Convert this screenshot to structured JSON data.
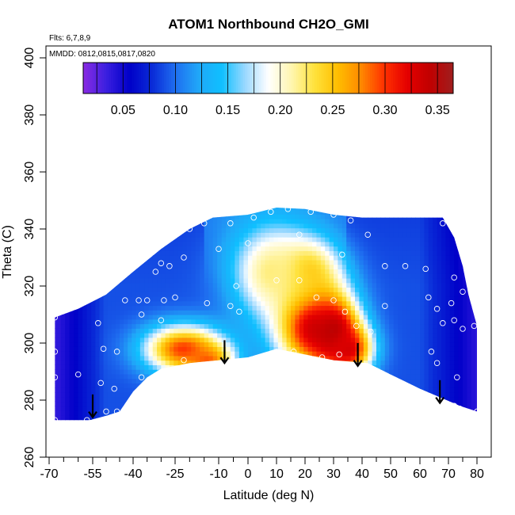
{
  "chart_data": {
    "type": "heatmap",
    "title": "ATOM1 Northbound CH2O_GMI",
    "subtitle_flights": "Flts: 6,7,8,9",
    "subtitle_dates": "MMDD: 0812,0815,0817,0820",
    "xlabel": "Latitude (deg N)",
    "ylabel": "Theta (C)",
    "xlim": [
      -72,
      85
    ],
    "ylim": [
      260,
      402
    ],
    "x_ticks": [
      -70,
      -55,
      -40,
      -25,
      -10,
      0,
      10,
      20,
      30,
      40,
      50,
      60,
      70,
      80
    ],
    "x_ticks_major_labels": [
      "-70",
      "-55",
      "-40",
      "-25",
      "-10",
      "0",
      "10",
      "20",
      "30",
      "40",
      "50",
      "60",
      "70",
      "80"
    ],
    "y_ticks": [
      260,
      280,
      300,
      320,
      340,
      360,
      380,
      400
    ],
    "y_tick_labels": [
      "260",
      "280",
      "300",
      "320",
      "340",
      "360",
      "380",
      "400"
    ],
    "colorbar": {
      "range": [
        0.012,
        0.365
      ],
      "tick_values": [
        0.05,
        0.1,
        0.15,
        0.2,
        0.25,
        0.3,
        0.35
      ],
      "tick_labels": [
        "0.05",
        "0.10",
        "0.15",
        "0.20",
        "0.25",
        "0.30",
        "0.35"
      ],
      "colors": [
        "#8a2be2",
        "#3a1fe0",
        "#0000c8",
        "#0a2cd8",
        "#1f6ff0",
        "#20a8f8",
        "#0fc0ff",
        "#9ad8ff",
        "#ffffff",
        "#fff6b0",
        "#ffe23c",
        "#ffbe00",
        "#ff8a00",
        "#ff3200",
        "#e50000",
        "#c00000",
        "#9f1f1f"
      ]
    },
    "domain_top": [
      [
        -68,
        309
      ],
      [
        -60,
        312
      ],
      [
        -50,
        317
      ],
      [
        -40,
        325
      ],
      [
        -30,
        333
      ],
      [
        -20,
        340
      ],
      [
        -12,
        344
      ],
      [
        0,
        345
      ],
      [
        10,
        347.5
      ],
      [
        20,
        347
      ],
      [
        30,
        345
      ],
      [
        40,
        344
      ],
      [
        50,
        344
      ],
      [
        60,
        344
      ],
      [
        68,
        344
      ],
      [
        72,
        337
      ],
      [
        75,
        327
      ],
      [
        77,
        317
      ],
      [
        80,
        306
      ]
    ],
    "domain_bottom": [
      [
        80,
        276
      ],
      [
        74,
        278
      ],
      [
        67,
        281
      ],
      [
        60,
        284
      ],
      [
        50,
        289
      ],
      [
        42,
        293
      ],
      [
        30,
        294
      ],
      [
        20,
        296
      ],
      [
        10,
        298
      ],
      [
        0,
        295
      ],
      [
        -10,
        294
      ],
      [
        -20,
        293
      ],
      [
        -30,
        291
      ],
      [
        -35,
        288
      ],
      [
        -40,
        283
      ],
      [
        -45,
        276
      ],
      [
        -50,
        274.5
      ],
      [
        -56,
        273
      ],
      [
        -68,
        273
      ]
    ],
    "field_sources": [
      {
        "lat": 22,
        "theta": 308,
        "value": 0.35,
        "spread_lat": 9,
        "spread_theta": 12
      },
      {
        "lat": 30,
        "theta": 304,
        "value": 0.36,
        "spread_lat": 6,
        "spread_theta": 8
      },
      {
        "lat": -22,
        "theta": 298,
        "value": 0.3,
        "spread_lat": 10,
        "spread_theta": 6
      },
      {
        "lat": -14,
        "theta": 294,
        "value": 0.29,
        "spread_lat": 6,
        "spread_theta": 4
      },
      {
        "lat": 35,
        "theta": 298,
        "value": 0.33,
        "spread_lat": 6,
        "spread_theta": 6
      },
      {
        "lat": 20,
        "theta": 325,
        "value": 0.26,
        "spread_lat": 8,
        "spread_theta": 8
      },
      {
        "lat": 8,
        "theta": 325,
        "value": 0.22,
        "spread_lat": 10,
        "spread_theta": 12
      }
    ],
    "background_value": 0.09,
    "samples": [
      {
        "lat": -68,
        "theta": 309
      },
      {
        "lat": -68,
        "theta": 297
      },
      {
        "lat": -68,
        "theta": 288
      },
      {
        "lat": -68,
        "theta": 273
      },
      {
        "lat": -60,
        "theta": 289
      },
      {
        "lat": -57,
        "theta": 273
      },
      {
        "lat": -53,
        "theta": 307
      },
      {
        "lat": -51,
        "theta": 298
      },
      {
        "lat": -52,
        "theta": 286
      },
      {
        "lat": -50,
        "theta": 276
      },
      {
        "lat": -47,
        "theta": 284
      },
      {
        "lat": -46,
        "theta": 276
      },
      {
        "lat": -46,
        "theta": 297
      },
      {
        "lat": -43,
        "theta": 315
      },
      {
        "lat": -38,
        "theta": 315
      },
      {
        "lat": -37,
        "theta": 310
      },
      {
        "lat": -35,
        "theta": 315
      },
      {
        "lat": -37,
        "theta": 288
      },
      {
        "lat": -32,
        "theta": 325
      },
      {
        "lat": -30,
        "theta": 328
      },
      {
        "lat": -27,
        "theta": 327
      },
      {
        "lat": -22,
        "theta": 330
      },
      {
        "lat": -20,
        "theta": 340
      },
      {
        "lat": -15,
        "theta": 342
      },
      {
        "lat": -6,
        "theta": 342
      },
      {
        "lat": 2,
        "theta": 344
      },
      {
        "lat": 8,
        "theta": 346
      },
      {
        "lat": 14,
        "theta": 347
      },
      {
        "lat": 22,
        "theta": 346
      },
      {
        "lat": 30,
        "theta": 345
      },
      {
        "lat": 36,
        "theta": 343
      },
      {
        "lat": 42,
        "theta": 338
      },
      {
        "lat": 33,
        "theta": 331
      },
      {
        "lat": 18,
        "theta": 338
      },
      {
        "lat": 0,
        "theta": 335
      },
      {
        "lat": -10,
        "theta": 333
      },
      {
        "lat": 48,
        "theta": 327
      },
      {
        "lat": 55,
        "theta": 327
      },
      {
        "lat": 62,
        "theta": 326
      },
      {
        "lat": 68,
        "theta": 342
      },
      {
        "lat": 72,
        "theta": 323
      },
      {
        "lat": 75,
        "theta": 318
      },
      {
        "lat": 71,
        "theta": 314
      },
      {
        "lat": 66,
        "theta": 312
      },
      {
        "lat": 63,
        "theta": 316
      },
      {
        "lat": 68,
        "theta": 307
      },
      {
        "lat": 72,
        "theta": 308
      },
      {
        "lat": 75,
        "theta": 305
      },
      {
        "lat": 66,
        "theta": 293
      },
      {
        "lat": 64,
        "theta": 297
      },
      {
        "lat": 73,
        "theta": 288
      },
      {
        "lat": 72,
        "theta": 278
      },
      {
        "lat": 74,
        "theta": 277
      },
      {
        "lat": 80,
        "theta": 276
      },
      {
        "lat": 79,
        "theta": 306
      },
      {
        "lat": 18,
        "theta": 322
      },
      {
        "lat": 24,
        "theta": 316
      },
      {
        "lat": 30,
        "theta": 315
      },
      {
        "lat": 34,
        "theta": 311
      },
      {
        "lat": 38,
        "theta": 306
      },
      {
        "lat": 43,
        "theta": 304
      },
      {
        "lat": 32,
        "theta": 296
      },
      {
        "lat": 16,
        "theta": 297
      },
      {
        "lat": 26,
        "theta": 295
      },
      {
        "lat": -25,
        "theta": 316
      },
      {
        "lat": -14,
        "theta": 314
      },
      {
        "lat": -6,
        "theta": 313
      },
      {
        "lat": -3,
        "theta": 311
      },
      {
        "lat": -22,
        "theta": 294
      },
      {
        "lat": -30,
        "theta": 308
      },
      {
        "lat": -29,
        "theta": 315
      },
      {
        "lat": 48,
        "theta": 313
      },
      {
        "lat": 10,
        "theta": 322
      },
      {
        "lat": -4,
        "theta": 320
      }
    ],
    "arrows": [
      {
        "lat": -55,
        "theta": 274,
        "from_theta": 282
      },
      {
        "lat": -8,
        "theta": 293,
        "from_theta": 301
      },
      {
        "lat": 38.5,
        "theta": 292,
        "from_theta": 300
      },
      {
        "lat": 67,
        "theta": 279,
        "from_theta": 287
      }
    ]
  }
}
